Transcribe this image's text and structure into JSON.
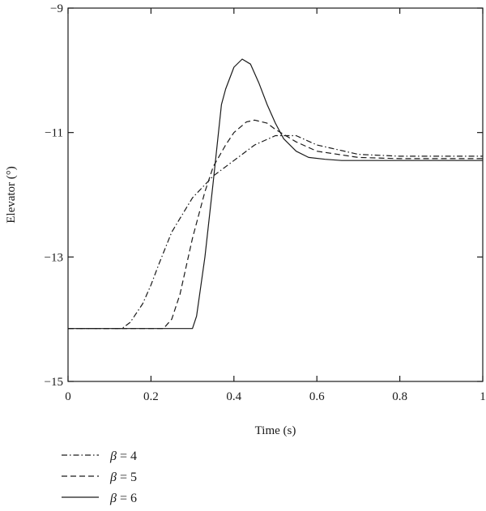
{
  "chart_data": {
    "type": "line",
    "title": "",
    "xlabel": "Time (s)",
    "ylabel": "Elevator (°)",
    "xlim": [
      0,
      1
    ],
    "ylim": [
      -15,
      -9
    ],
    "xticks": [
      0,
      0.2,
      0.4,
      0.6,
      0.8,
      1
    ],
    "xtick_labels": [
      "0",
      "0.2",
      "0.4",
      "0.6",
      "0.8",
      "1"
    ],
    "yticks": [
      -15,
      -13,
      -11,
      -9
    ],
    "ytick_labels": [
      "−15",
      "−13",
      "−11",
      "−9"
    ],
    "grid": false,
    "legend_position": "bottom-left",
    "series": [
      {
        "name": "β = 4",
        "legend_symbol": "β",
        "legend_value": "= 4",
        "style": "dashdot",
        "x": [
          0,
          0.13,
          0.15,
          0.18,
          0.2,
          0.22,
          0.25,
          0.3,
          0.35,
          0.4,
          0.45,
          0.5,
          0.55,
          0.6,
          0.7,
          0.8,
          0.9,
          1.0
        ],
        "y": [
          -14.15,
          -14.15,
          -14.05,
          -13.75,
          -13.45,
          -13.1,
          -12.6,
          -12.05,
          -11.7,
          -11.45,
          -11.2,
          -11.05,
          -11.05,
          -11.2,
          -11.35,
          -11.38,
          -11.38,
          -11.38
        ]
      },
      {
        "name": "β = 5",
        "legend_symbol": "β",
        "legend_value": "= 5",
        "style": "dashed",
        "x": [
          0,
          0.23,
          0.25,
          0.27,
          0.3,
          0.33,
          0.35,
          0.38,
          0.4,
          0.43,
          0.45,
          0.48,
          0.5,
          0.55,
          0.6,
          0.7,
          0.8,
          0.9,
          1.0
        ],
        "y": [
          -14.15,
          -14.15,
          -14.0,
          -13.6,
          -12.7,
          -11.95,
          -11.55,
          -11.2,
          -11.0,
          -10.83,
          -10.8,
          -10.85,
          -10.95,
          -11.15,
          -11.3,
          -11.4,
          -11.42,
          -11.42,
          -11.42
        ]
      },
      {
        "name": "β = 6",
        "legend_symbol": "β",
        "legend_value": "= 6",
        "style": "solid",
        "x": [
          0,
          0.3,
          0.31,
          0.33,
          0.35,
          0.37,
          0.38,
          0.4,
          0.42,
          0.44,
          0.46,
          0.48,
          0.5,
          0.52,
          0.55,
          0.58,
          0.62,
          0.66,
          0.7,
          0.8,
          0.9,
          1.0
        ],
        "y": [
          -14.15,
          -14.15,
          -13.95,
          -13.0,
          -11.8,
          -10.55,
          -10.3,
          -9.95,
          -9.82,
          -9.9,
          -10.2,
          -10.55,
          -10.85,
          -11.1,
          -11.3,
          -11.4,
          -11.43,
          -11.45,
          -11.45,
          -11.45,
          -11.45,
          -11.45
        ]
      }
    ]
  }
}
